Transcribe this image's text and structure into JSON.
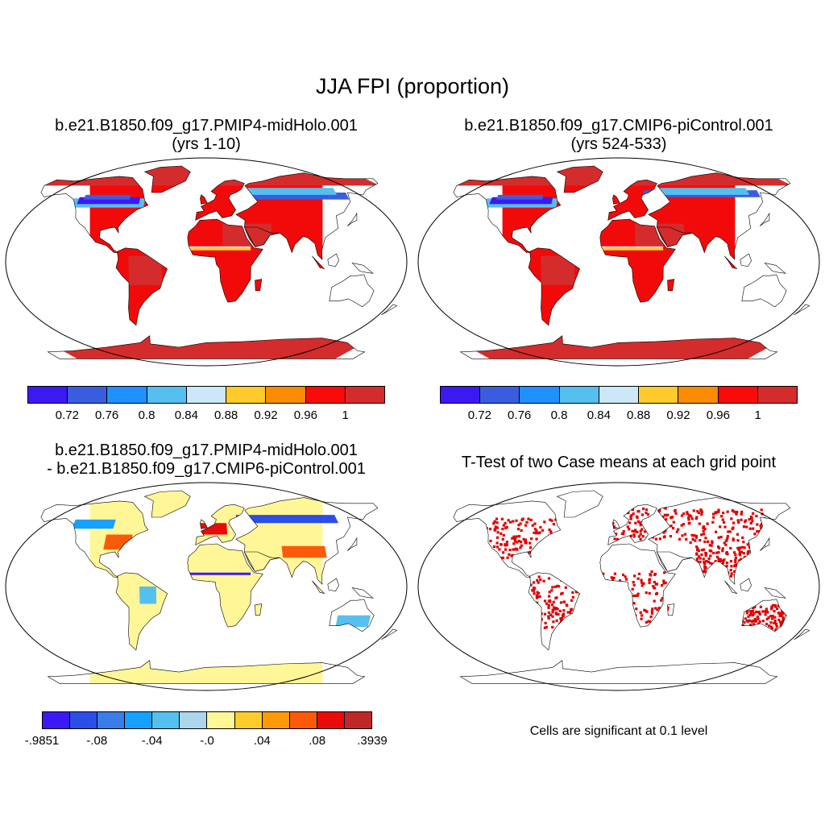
{
  "title": "JJA FPI (proportion)",
  "panels": [
    {
      "id": "p1",
      "title_line1": "b.e21.B1850.f09_g17.PMIP4-midHolo.001",
      "title_line2": "(yrs 1-10)",
      "map_style": "field"
    },
    {
      "id": "p2",
      "title_line1": "b.e21.B1850.f09_g17.CMIP6-piControl.001",
      "title_line2": "(yrs 524-533)",
      "map_style": "field"
    },
    {
      "id": "p3",
      "title_line1": "b.e21.B1850.f09_g17.PMIP4-midHolo.001",
      "title_line2": "- b.e21.B1850.f09_g17.CMIP6-piControl.001",
      "map_style": "difference"
    },
    {
      "id": "p4",
      "title_line1": "T-Test of two Case means at each grid point",
      "note": "Cells are significant at 0.1 level",
      "map_style": "significance"
    }
  ],
  "colorbars": {
    "field": {
      "colors": [
        "#3b19f5",
        "#3a5de0",
        "#1e90ff",
        "#55bff0",
        "#cce7f7",
        "#fdcc2c",
        "#fb8b00",
        "#fb0a0a",
        "#d42c2c"
      ],
      "tick_labels": [
        "0.72",
        "0.76",
        "0.8",
        "0.84",
        "0.88",
        "0.92",
        "0.96",
        "1"
      ]
    },
    "difference": {
      "colors": [
        "#3b19f5",
        "#2b4de8",
        "#3a7ce8",
        "#16a1ff",
        "#55c0f0",
        "#acd6ec",
        "#fff697",
        "#fecd2c",
        "#fc9a0a",
        "#fb5a0a",
        "#e90a0a",
        "#c02828"
      ],
      "tick_labels": [
        "-.9851",
        "-.08",
        "-.04",
        "-.0",
        ".04",
        ".08",
        ".3939"
      ]
    }
  },
  "map_colors": {
    "land_field": "#f20a0a",
    "land_field_dark": "#d42c2c",
    "land_diff": "#fff697",
    "significant": "#e00000",
    "coast": "#000000"
  },
  "chart_data": [
    {
      "type": "heatmap",
      "title": "b.e21.B1850.f09_g17.PMIP4-midHolo.001 (yrs 1-10)",
      "variable": "JJA FPI (proportion)",
      "colorbar_levels": [
        0.72,
        0.76,
        0.8,
        0.84,
        0.88,
        0.92,
        0.96,
        1
      ],
      "dominant_range_over_land": [
        0.96,
        1.0
      ],
      "low_value_regions": [
        "northern North America boreal belt",
        "northern Eurasia boreal belt",
        "Sahel band"
      ]
    },
    {
      "type": "heatmap",
      "title": "b.e21.B1850.f09_g17.CMIP6-piControl.001 (yrs 524-533)",
      "variable": "JJA FPI (proportion)",
      "colorbar_levels": [
        0.72,
        0.76,
        0.8,
        0.84,
        0.88,
        0.92,
        0.96,
        1
      ],
      "dominant_range_over_land": [
        0.96,
        1.0
      ],
      "low_value_regions": [
        "northern North America boreal belt",
        "northern Eurasia boreal belt",
        "Sahel band"
      ]
    },
    {
      "type": "heatmap",
      "title": "PMIP4-midHolo minus CMIP6-piControl",
      "colorbar_levels": [
        -0.9851,
        -0.08,
        -0.04,
        0.0,
        0.04,
        0.08,
        0.3939
      ],
      "dominant_range_over_land": [
        0.0,
        0.04
      ]
    },
    {
      "type": "heatmap",
      "title": "T-Test of two Case means at each grid point",
      "significance_level": 0.1
    }
  ]
}
